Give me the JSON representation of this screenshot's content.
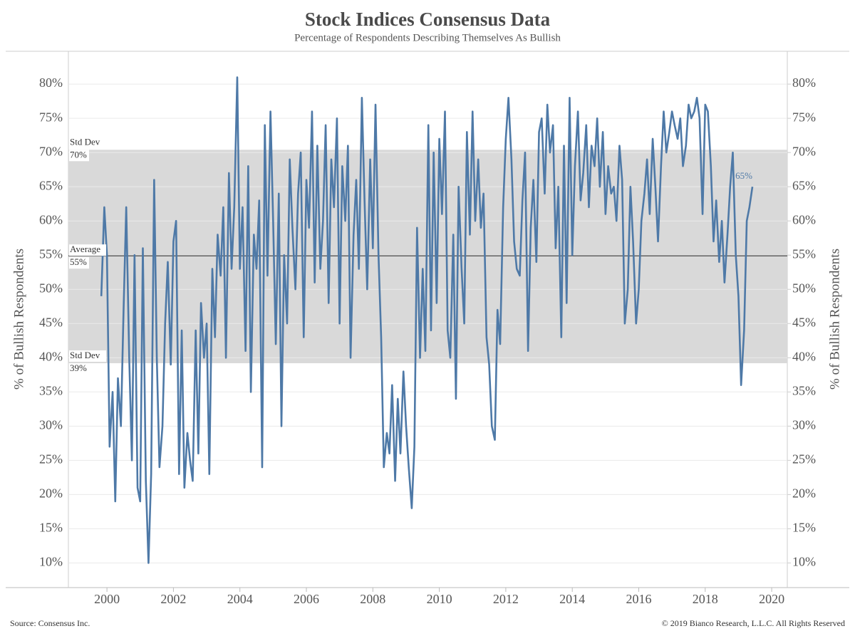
{
  "chart_data": {
    "type": "line",
    "title": "Stock Indices Consensus Data",
    "subtitle": "Percentage of Respondents Describing Themselves As Bullish",
    "y_label": "% of Bullish Respondents",
    "y2_label": "% of Bullish Respondents",
    "source": "Source: Consensus Inc.",
    "copyright": "© 2019 Bianco Research, L.L.C. All Rights Reserved",
    "xlim": [
      1998.84,
      2020.47
    ],
    "xticks": [
      2000,
      2002,
      2004,
      2006,
      2008,
      2010,
      2012,
      2014,
      2016,
      2018,
      2020
    ],
    "ylim": [
      6.4,
      84.8
    ],
    "yticks": [
      {
        "value": 10,
        "label": "10%"
      },
      {
        "value": 15,
        "label": "15%"
      },
      {
        "value": 20,
        "label": "20%"
      },
      {
        "value": 25,
        "label": "25%"
      },
      {
        "value": 30,
        "label": "30%"
      },
      {
        "value": 35,
        "label": "35%"
      },
      {
        "value": 40,
        "label": "40%"
      },
      {
        "value": 45,
        "label": "45%"
      },
      {
        "value": 50,
        "label": "50%"
      },
      {
        "value": 55,
        "label": "55%"
      },
      {
        "value": 60,
        "label": "60%"
      },
      {
        "value": 65,
        "label": "65%"
      },
      {
        "value": 70,
        "label": "70%"
      },
      {
        "value": 75,
        "label": "75%"
      },
      {
        "value": 80,
        "label": "80%"
      }
    ],
    "y2lim": [
      6.4,
      84.8
    ],
    "y2ticks": [
      {
        "value": 10,
        "label": "10%"
      },
      {
        "value": 15,
        "label": "15%"
      },
      {
        "value": 20,
        "label": "20%"
      },
      {
        "value": 25,
        "label": "25%"
      },
      {
        "value": 30,
        "label": "30%"
      },
      {
        "value": 35,
        "label": "35%"
      },
      {
        "value": 40,
        "label": "40%"
      },
      {
        "value": 45,
        "label": "45%"
      },
      {
        "value": 50,
        "label": "50%"
      },
      {
        "value": 55,
        "label": "55%"
      },
      {
        "value": 60,
        "label": "60%"
      },
      {
        "value": 65,
        "label": "65%"
      },
      {
        "value": 70,
        "label": "70%"
      },
      {
        "value": 75,
        "label": "75%"
      },
      {
        "value": 80,
        "label": "80%"
      }
    ],
    "grid": true,
    "bands": {
      "upper": {
        "name": "Std Dev",
        "value": 70.4,
        "label": "70%"
      },
      "average": {
        "name": "Average",
        "value": 54.9,
        "label": "55%"
      },
      "lower": {
        "name": "Std Dev",
        "value": 39.2,
        "label": "39%"
      }
    },
    "band_color": "#d9d9d9",
    "end_label": {
      "value": 65,
      "label": "65%"
    },
    "x": [
      1999.83,
      1999.92,
      2000.0,
      2000.08,
      2000.17,
      2000.25,
      2000.33,
      2000.42,
      2000.5,
      2000.58,
      2000.67,
      2000.75,
      2000.83,
      2000.92,
      2001.0,
      2001.08,
      2001.17,
      2001.25,
      2001.33,
      2001.42,
      2001.5,
      2001.58,
      2001.67,
      2001.75,
      2001.83,
      2001.92,
      2002.0,
      2002.08,
      2002.17,
      2002.25,
      2002.33,
      2002.42,
      2002.5,
      2002.58,
      2002.67,
      2002.75,
      2002.83,
      2002.92,
      2003.0,
      2003.08,
      2003.17,
      2003.25,
      2003.33,
      2003.42,
      2003.5,
      2003.58,
      2003.67,
      2003.75,
      2003.83,
      2003.92,
      2004.0,
      2004.08,
      2004.17,
      2004.25,
      2004.33,
      2004.42,
      2004.5,
      2004.58,
      2004.67,
      2004.75,
      2004.83,
      2004.92,
      2005.0,
      2005.08,
      2005.17,
      2005.25,
      2005.33,
      2005.42,
      2005.5,
      2005.58,
      2005.67,
      2005.75,
      2005.83,
      2005.92,
      2006.0,
      2006.08,
      2006.17,
      2006.25,
      2006.33,
      2006.42,
      2006.5,
      2006.58,
      2006.67,
      2006.75,
      2006.83,
      2006.92,
      2007.0,
      2007.08,
      2007.17,
      2007.25,
      2007.33,
      2007.42,
      2007.5,
      2007.58,
      2007.67,
      2007.75,
      2007.83,
      2007.92,
      2008.0,
      2008.08,
      2008.17,
      2008.25,
      2008.33,
      2008.42,
      2008.5,
      2008.58,
      2008.67,
      2008.75,
      2008.83,
      2008.92,
      2009.0,
      2009.08,
      2009.17,
      2009.25,
      2009.33,
      2009.42,
      2009.5,
      2009.58,
      2009.67,
      2009.75,
      2009.83,
      2009.92,
      2010.0,
      2010.08,
      2010.17,
      2010.25,
      2010.33,
      2010.42,
      2010.5,
      2010.58,
      2010.67,
      2010.75,
      2010.83,
      2010.92,
      2011.0,
      2011.08,
      2011.17,
      2011.25,
      2011.33,
      2011.42,
      2011.5,
      2011.58,
      2011.67,
      2011.75,
      2011.83,
      2011.92,
      2012.0,
      2012.08,
      2012.17,
      2012.25,
      2012.33,
      2012.42,
      2012.5,
      2012.58,
      2012.67,
      2012.75,
      2012.83,
      2012.92,
      2013.0,
      2013.08,
      2013.17,
      2013.25,
      2013.33,
      2013.42,
      2013.5,
      2013.58,
      2013.67,
      2013.75,
      2013.83,
      2013.92,
      2014.0,
      2014.08,
      2014.17,
      2014.25,
      2014.33,
      2014.42,
      2014.5,
      2014.58,
      2014.67,
      2014.75,
      2014.83,
      2014.92,
      2015.0,
      2015.08,
      2015.17,
      2015.25,
      2015.33,
      2015.42,
      2015.5,
      2015.58,
      2015.67,
      2015.75,
      2015.83,
      2015.92,
      2016.0,
      2016.08,
      2016.17,
      2016.25,
      2016.33,
      2016.42,
      2016.5,
      2016.58,
      2016.67,
      2016.75,
      2016.83,
      2016.92,
      2017.0,
      2017.08,
      2017.17,
      2017.25,
      2017.33,
      2017.42,
      2017.5,
      2017.58,
      2017.67,
      2017.75,
      2017.83,
      2017.92,
      2018.0,
      2018.08,
      2018.17,
      2018.25,
      2018.33,
      2018.42,
      2018.5,
      2018.58,
      2018.67,
      2018.75,
      2018.83,
      2018.92,
      2019.0,
      2019.08,
      2019.17,
      2019.25,
      2019.33,
      2019.42
    ],
    "series": [
      {
        "name": "Bullish",
        "color": "#4e79a7",
        "values": [
          49,
          62,
          55,
          27,
          35,
          19,
          37,
          30,
          47,
          62,
          40,
          25,
          55,
          21,
          19,
          56,
          22,
          10,
          23,
          66,
          40,
          24,
          30,
          45,
          54,
          39,
          57,
          60,
          23,
          44,
          21,
          29,
          25,
          22,
          44,
          26,
          48,
          40,
          45,
          23,
          53,
          43,
          58,
          52,
          62,
          40,
          67,
          53,
          62,
          81,
          53,
          62,
          41,
          68,
          35,
          58,
          53,
          63,
          24,
          74,
          52,
          76,
          60,
          42,
          64,
          30,
          55,
          45,
          69,
          59,
          50,
          64,
          70,
          43,
          66,
          59,
          76,
          51,
          71,
          53,
          60,
          74,
          48,
          69,
          62,
          75,
          45,
          68,
          60,
          71,
          40,
          58,
          66,
          53,
          78,
          63,
          50,
          69,
          56,
          77,
          55,
          43,
          24,
          29,
          26,
          36,
          22,
          34,
          26,
          38,
          30,
          24,
          18,
          27,
          59,
          40,
          53,
          41,
          74,
          44,
          70,
          48,
          72,
          61,
          76,
          44,
          40,
          58,
          34,
          65,
          53,
          45,
          73,
          58,
          76,
          60,
          69,
          59,
          64,
          43,
          39,
          30,
          28,
          47,
          42,
          62,
          72,
          78,
          69,
          57,
          53,
          52,
          63,
          70,
          41,
          59,
          66,
          54,
          73,
          75,
          64,
          77,
          70,
          74,
          56,
          65,
          43,
          71,
          48,
          78,
          55,
          68,
          76,
          63,
          67,
          74,
          62,
          71,
          68,
          75,
          65,
          73,
          61,
          68,
          64,
          65,
          60,
          71,
          66,
          45,
          50,
          65,
          57,
          45,
          50,
          60,
          64,
          69,
          61,
          72,
          65,
          57,
          68,
          76,
          70,
          73,
          76,
          74,
          72,
          75,
          68,
          71,
          77,
          75,
          76,
          78,
          75,
          61,
          77,
          76,
          68,
          57,
          63,
          54,
          60,
          51,
          58,
          65,
          70,
          55,
          49,
          36,
          44,
          60,
          62,
          65
        ]
      }
    ]
  }
}
